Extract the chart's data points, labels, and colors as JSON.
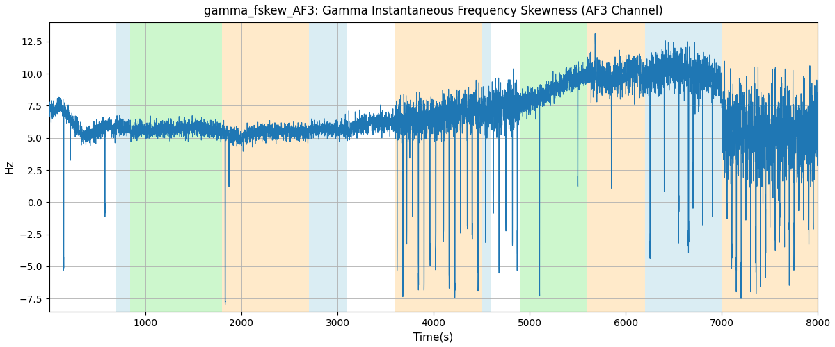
{
  "title": "gamma_fskew_AF3: Gamma Instantaneous Frequency Skewness (AF3 Channel)",
  "xlabel": "Time(s)",
  "ylabel": "Hz",
  "xlim": [
    0,
    8000
  ],
  "ylim": [
    -8.5,
    14
  ],
  "yticks": [
    -7.5,
    -5.0,
    -2.5,
    0.0,
    2.5,
    5.0,
    7.5,
    10.0,
    12.5
  ],
  "xticks": [
    1000,
    2000,
    3000,
    4000,
    5000,
    6000,
    7000,
    8000
  ],
  "line_color": "#1f77b4",
  "line_width": 0.8,
  "grid_color": "#b0b0b0",
  "bands": [
    {
      "xmin": 700,
      "xmax": 840,
      "color": "#add8e6",
      "alpha": 0.45
    },
    {
      "xmin": 840,
      "xmax": 1800,
      "color": "#90ee90",
      "alpha": 0.45
    },
    {
      "xmin": 1800,
      "xmax": 2700,
      "color": "#ffd9a0",
      "alpha": 0.55
    },
    {
      "xmin": 2700,
      "xmax": 3100,
      "color": "#add8e6",
      "alpha": 0.45
    },
    {
      "xmin": 3600,
      "xmax": 4500,
      "color": "#ffd9a0",
      "alpha": 0.55
    },
    {
      "xmin": 4500,
      "xmax": 4600,
      "color": "#add8e6",
      "alpha": 0.45
    },
    {
      "xmin": 4900,
      "xmax": 5600,
      "color": "#90ee90",
      "alpha": 0.45
    },
    {
      "xmin": 5600,
      "xmax": 6200,
      "color": "#ffd9a0",
      "alpha": 0.55
    },
    {
      "xmin": 6200,
      "xmax": 7000,
      "color": "#add8e6",
      "alpha": 0.45
    },
    {
      "xmin": 7000,
      "xmax": 8000,
      "color": "#ffd9a0",
      "alpha": 0.55
    }
  ],
  "n_points": 8001
}
